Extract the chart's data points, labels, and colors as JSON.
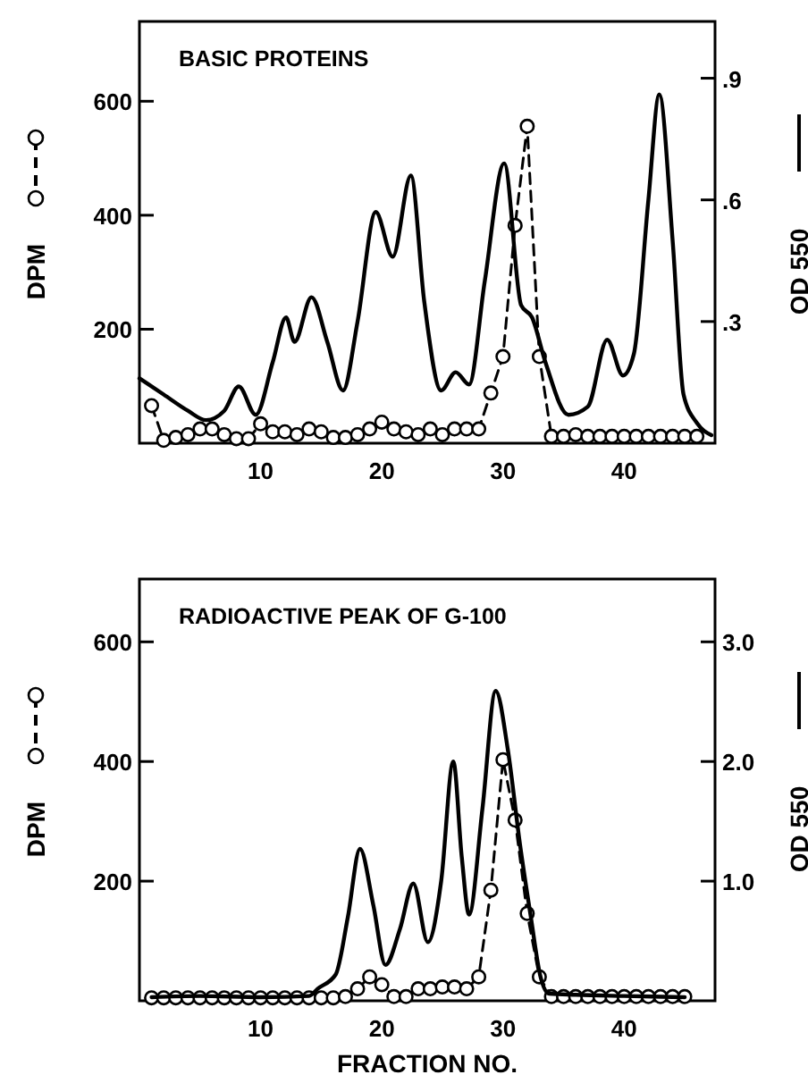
{
  "chart_data": [
    {
      "type": "line",
      "title": "BASIC PROTEINS",
      "ylabel": "DPM",
      "y2label": "OD 550",
      "xlim": [
        0,
        47.5
      ],
      "xticks": [
        10,
        20,
        30,
        40
      ],
      "ylim": [
        0,
        740
      ],
      "yticks": [
        200,
        400,
        600
      ],
      "y2lim": [
        0,
        1.04
      ],
      "y2ticks": [
        {
          "value": 0.3,
          "label": ".3"
        },
        {
          "value": 0.6,
          "label": ".6"
        },
        {
          "value": 0.9,
          "label": ".9"
        }
      ],
      "series": [
        {
          "color": "#000000",
          "marker": "circle",
          "line_style": "dashed",
          "axis": "y",
          "x": [
            1,
            2,
            3,
            4,
            5,
            6,
            7,
            8,
            9,
            10,
            11,
            12,
            13,
            14,
            15,
            16,
            17,
            18,
            19,
            20,
            21,
            22,
            23,
            24,
            25,
            26,
            27,
            28,
            29,
            30,
            31,
            32,
            33,
            34,
            35,
            36,
            37,
            38,
            39,
            40,
            41,
            42,
            43,
            44,
            45,
            46
          ],
          "values": [
            66,
            5,
            10,
            15,
            25,
            25,
            15,
            8,
            8,
            34,
            20,
            20,
            15,
            25,
            20,
            10,
            10,
            15,
            25,
            37,
            25,
            20,
            15,
            25,
            15,
            25,
            25,
            25,
            88,
            152,
            382,
            556,
            152,
            12,
            12,
            15,
            12,
            12,
            12,
            12,
            12,
            12,
            12,
            12,
            12,
            12
          ]
        },
        {
          "color": "#000000",
          "marker": "none",
          "line_style": "solid",
          "axis": "y2",
          "x": [
            0,
            2,
            4,
            5.5,
            7,
            8.2,
            9.6,
            11,
            12.1,
            12.8,
            14.2,
            15.5,
            16.8,
            18,
            19.5,
            20.9,
            22.4,
            23.5,
            24.9,
            26.1,
            27.2,
            28.5,
            30.1,
            31.5,
            32.4,
            33.5,
            35.4,
            37,
            38.6,
            39.9,
            40.8,
            42,
            42.9,
            44,
            44.9,
            46,
            47.2
          ],
          "values": [
            0.16,
            0.12,
            0.08,
            0.057,
            0.08,
            0.14,
            0.07,
            0.2,
            0.31,
            0.25,
            0.36,
            0.25,
            0.13,
            0.3,
            0.57,
            0.46,
            0.66,
            0.35,
            0.13,
            0.175,
            0.145,
            0.4,
            0.69,
            0.34,
            0.31,
            0.2,
            0.07,
            0.09,
            0.255,
            0.167,
            0.22,
            0.6,
            0.86,
            0.5,
            0.12,
            0.05,
            0.02
          ]
        }
      ]
    },
    {
      "type": "line",
      "title": "RADIOACTIVE PEAK OF G-100",
      "xlabel": "FRACTION NO.",
      "ylabel": "DPM",
      "y2label": "OD 550",
      "xlim": [
        0,
        47.5
      ],
      "xticks": [
        10,
        20,
        30,
        40
      ],
      "ylim": [
        0,
        705
      ],
      "yticks": [
        200,
        400,
        600
      ],
      "y2lim": [
        0,
        3.525
      ],
      "y2ticks": [
        {
          "value": 1,
          "label": "1.0"
        },
        {
          "value": 2,
          "label": "2.0"
        },
        {
          "value": 3,
          "label": "3.0"
        }
      ],
      "series": [
        {
          "color": "#000000",
          "marker": "circle",
          "line_style": "dashed",
          "axis": "y",
          "x": [
            1,
            2,
            3,
            4,
            5,
            6,
            7,
            8,
            9,
            10,
            11,
            12,
            13,
            14,
            15,
            16,
            17,
            18,
            19,
            20,
            21,
            22,
            23,
            24,
            25,
            26,
            27,
            28,
            29,
            30,
            31,
            32,
            33,
            34,
            35,
            36,
            37,
            38,
            39,
            40,
            41,
            42,
            43,
            44,
            45
          ],
          "values": [
            5,
            5,
            5,
            5,
            5,
            5,
            5,
            5,
            5,
            5,
            5,
            5,
            5,
            5,
            5,
            5,
            7,
            20,
            40,
            27,
            7,
            7,
            20,
            20,
            23,
            23,
            20,
            40,
            185,
            403,
            302,
            146,
            40,
            7,
            7,
            7,
            7,
            7,
            7,
            7,
            7,
            7,
            7,
            7,
            7
          ]
        },
        {
          "color": "#000000",
          "marker": "none",
          "line_style": "solid",
          "axis": "y2",
          "x": [
            1,
            5,
            10,
            14,
            14.7,
            16.2,
            17.2,
            18.2,
            19.3,
            20.3,
            21.5,
            22.6,
            23.8,
            24.9,
            25.9,
            26.6,
            27.2,
            28.3,
            29.4,
            30.4,
            31.4,
            32.3,
            33.1,
            33.8,
            36,
            40,
            45
          ],
          "values": [
            0.03,
            0.04,
            0.03,
            0.04,
            0.1,
            0.22,
            0.7,
            1.27,
            0.8,
            0.3,
            0.6,
            0.98,
            0.49,
            1.0,
            2.0,
            1.2,
            0.72,
            1.6,
            2.59,
            2.1,
            1.31,
            0.7,
            0.2,
            0.06,
            0.05,
            0.04,
            0.03
          ]
        }
      ]
    }
  ]
}
